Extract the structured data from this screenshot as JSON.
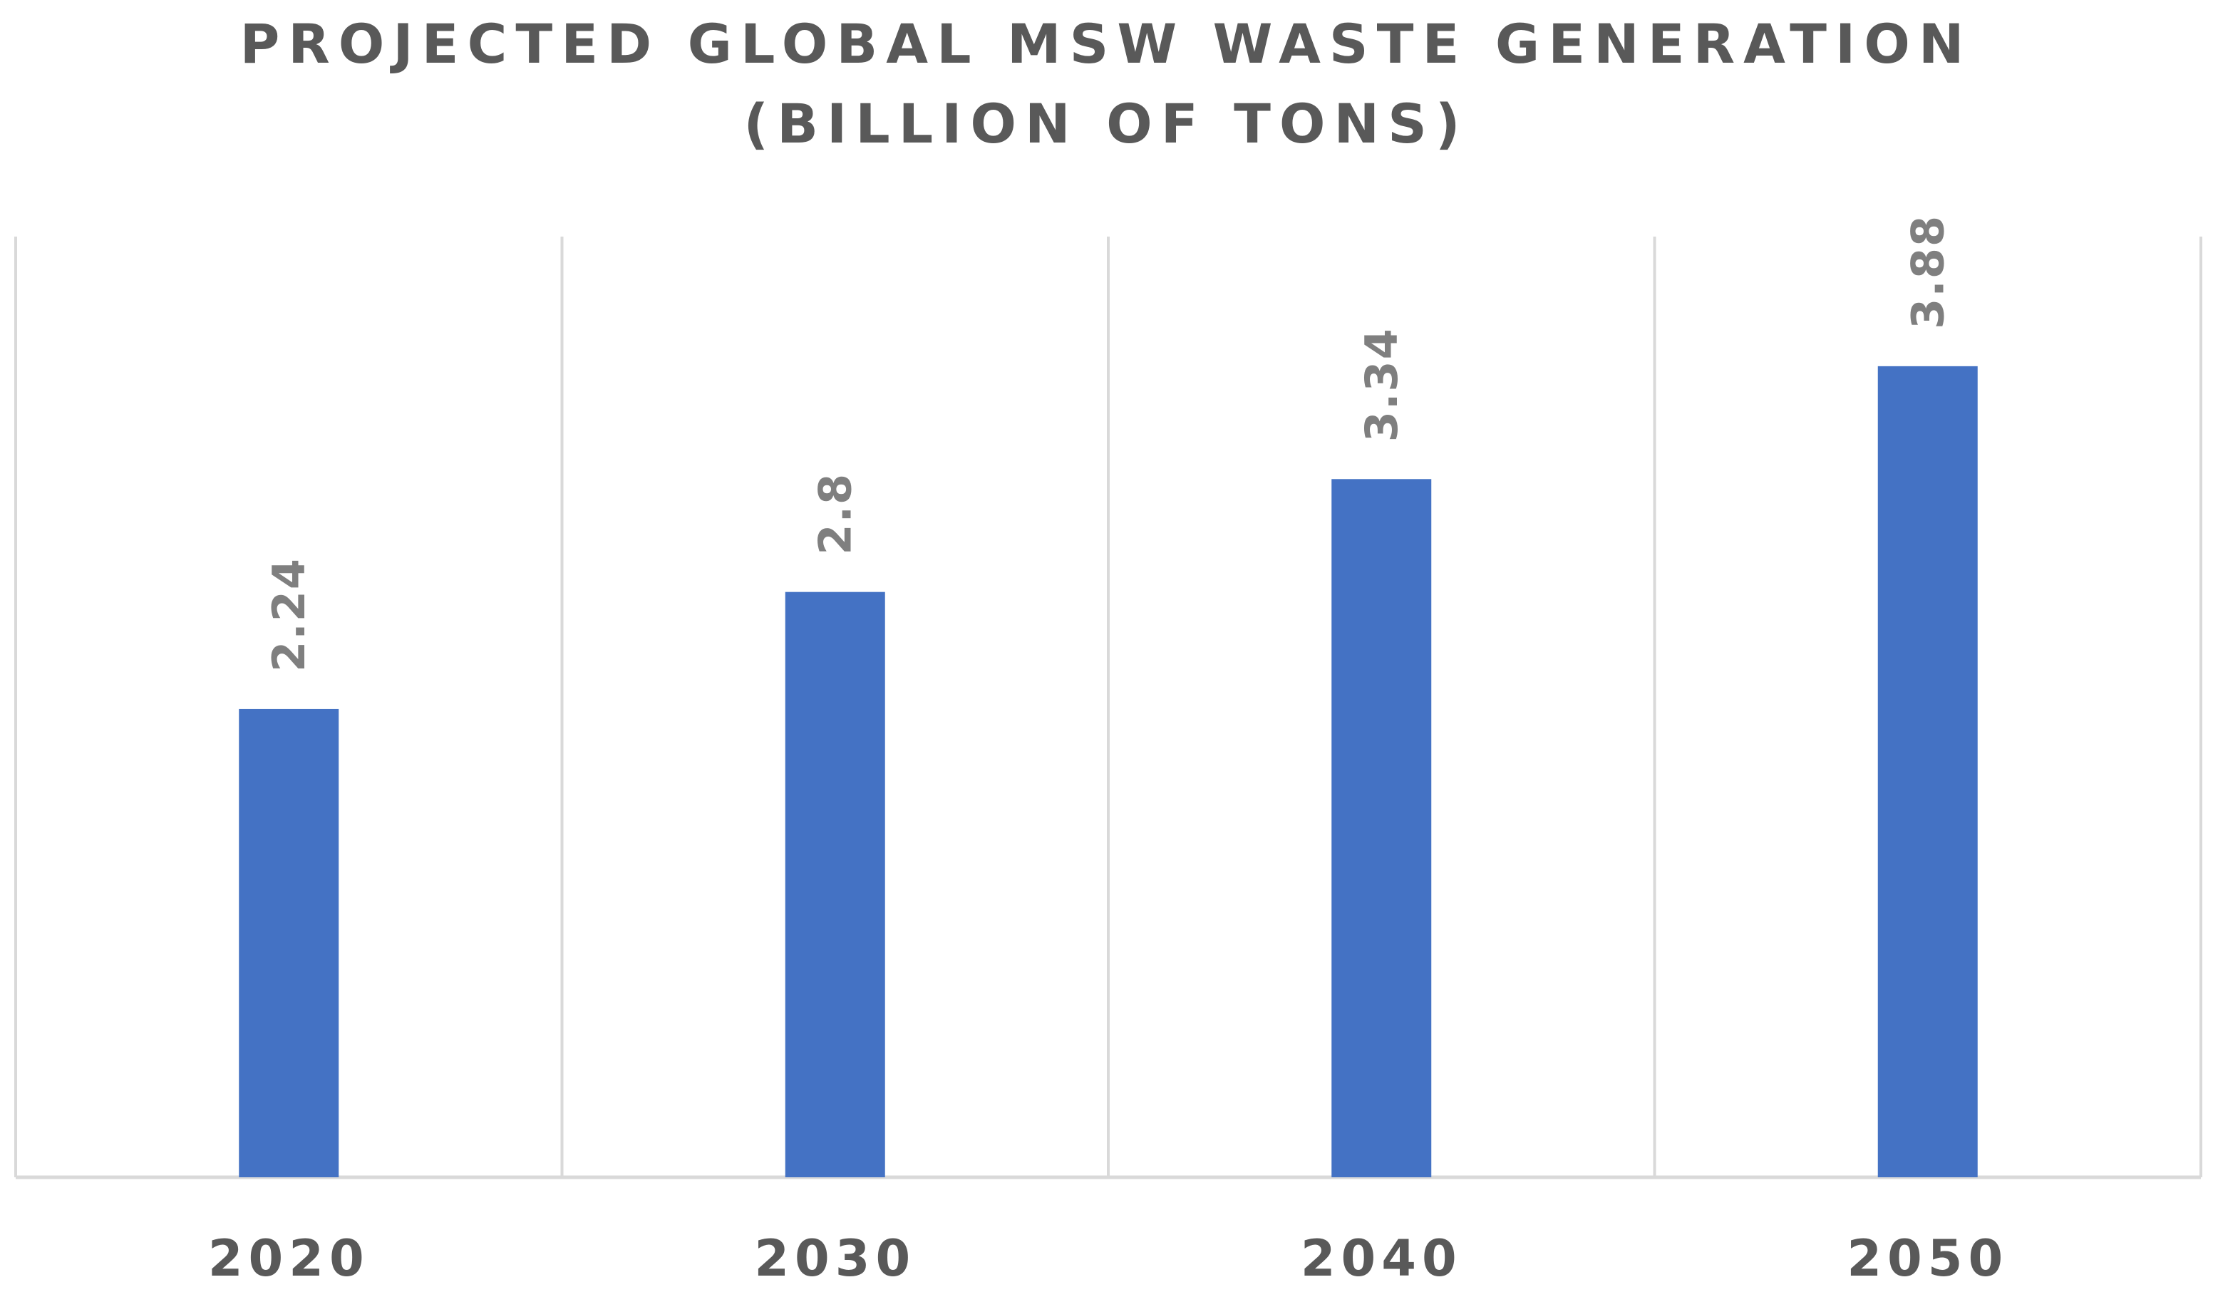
{
  "chart_data": {
    "type": "bar",
    "title": "PROJECTED GLOBAL MSW WASTE GENERATION",
    "subtitle": "(BILLION OF TONS)",
    "categories": [
      "2020",
      "2030",
      "2040",
      "2050"
    ],
    "series": [
      {
        "name": "Projected global MSW waste generation",
        "values": [
          2.24,
          2.8,
          3.34,
          3.88
        ],
        "labels": [
          "2.24",
          "2.8",
          "3.34",
          "3.88"
        ],
        "color": "#4472c4"
      }
    ],
    "xlabel": "",
    "ylabel": "",
    "ylim": [
      0,
      4.5
    ],
    "grid": "vertical category separators",
    "data_label_orientation": "rotated vertical"
  }
}
